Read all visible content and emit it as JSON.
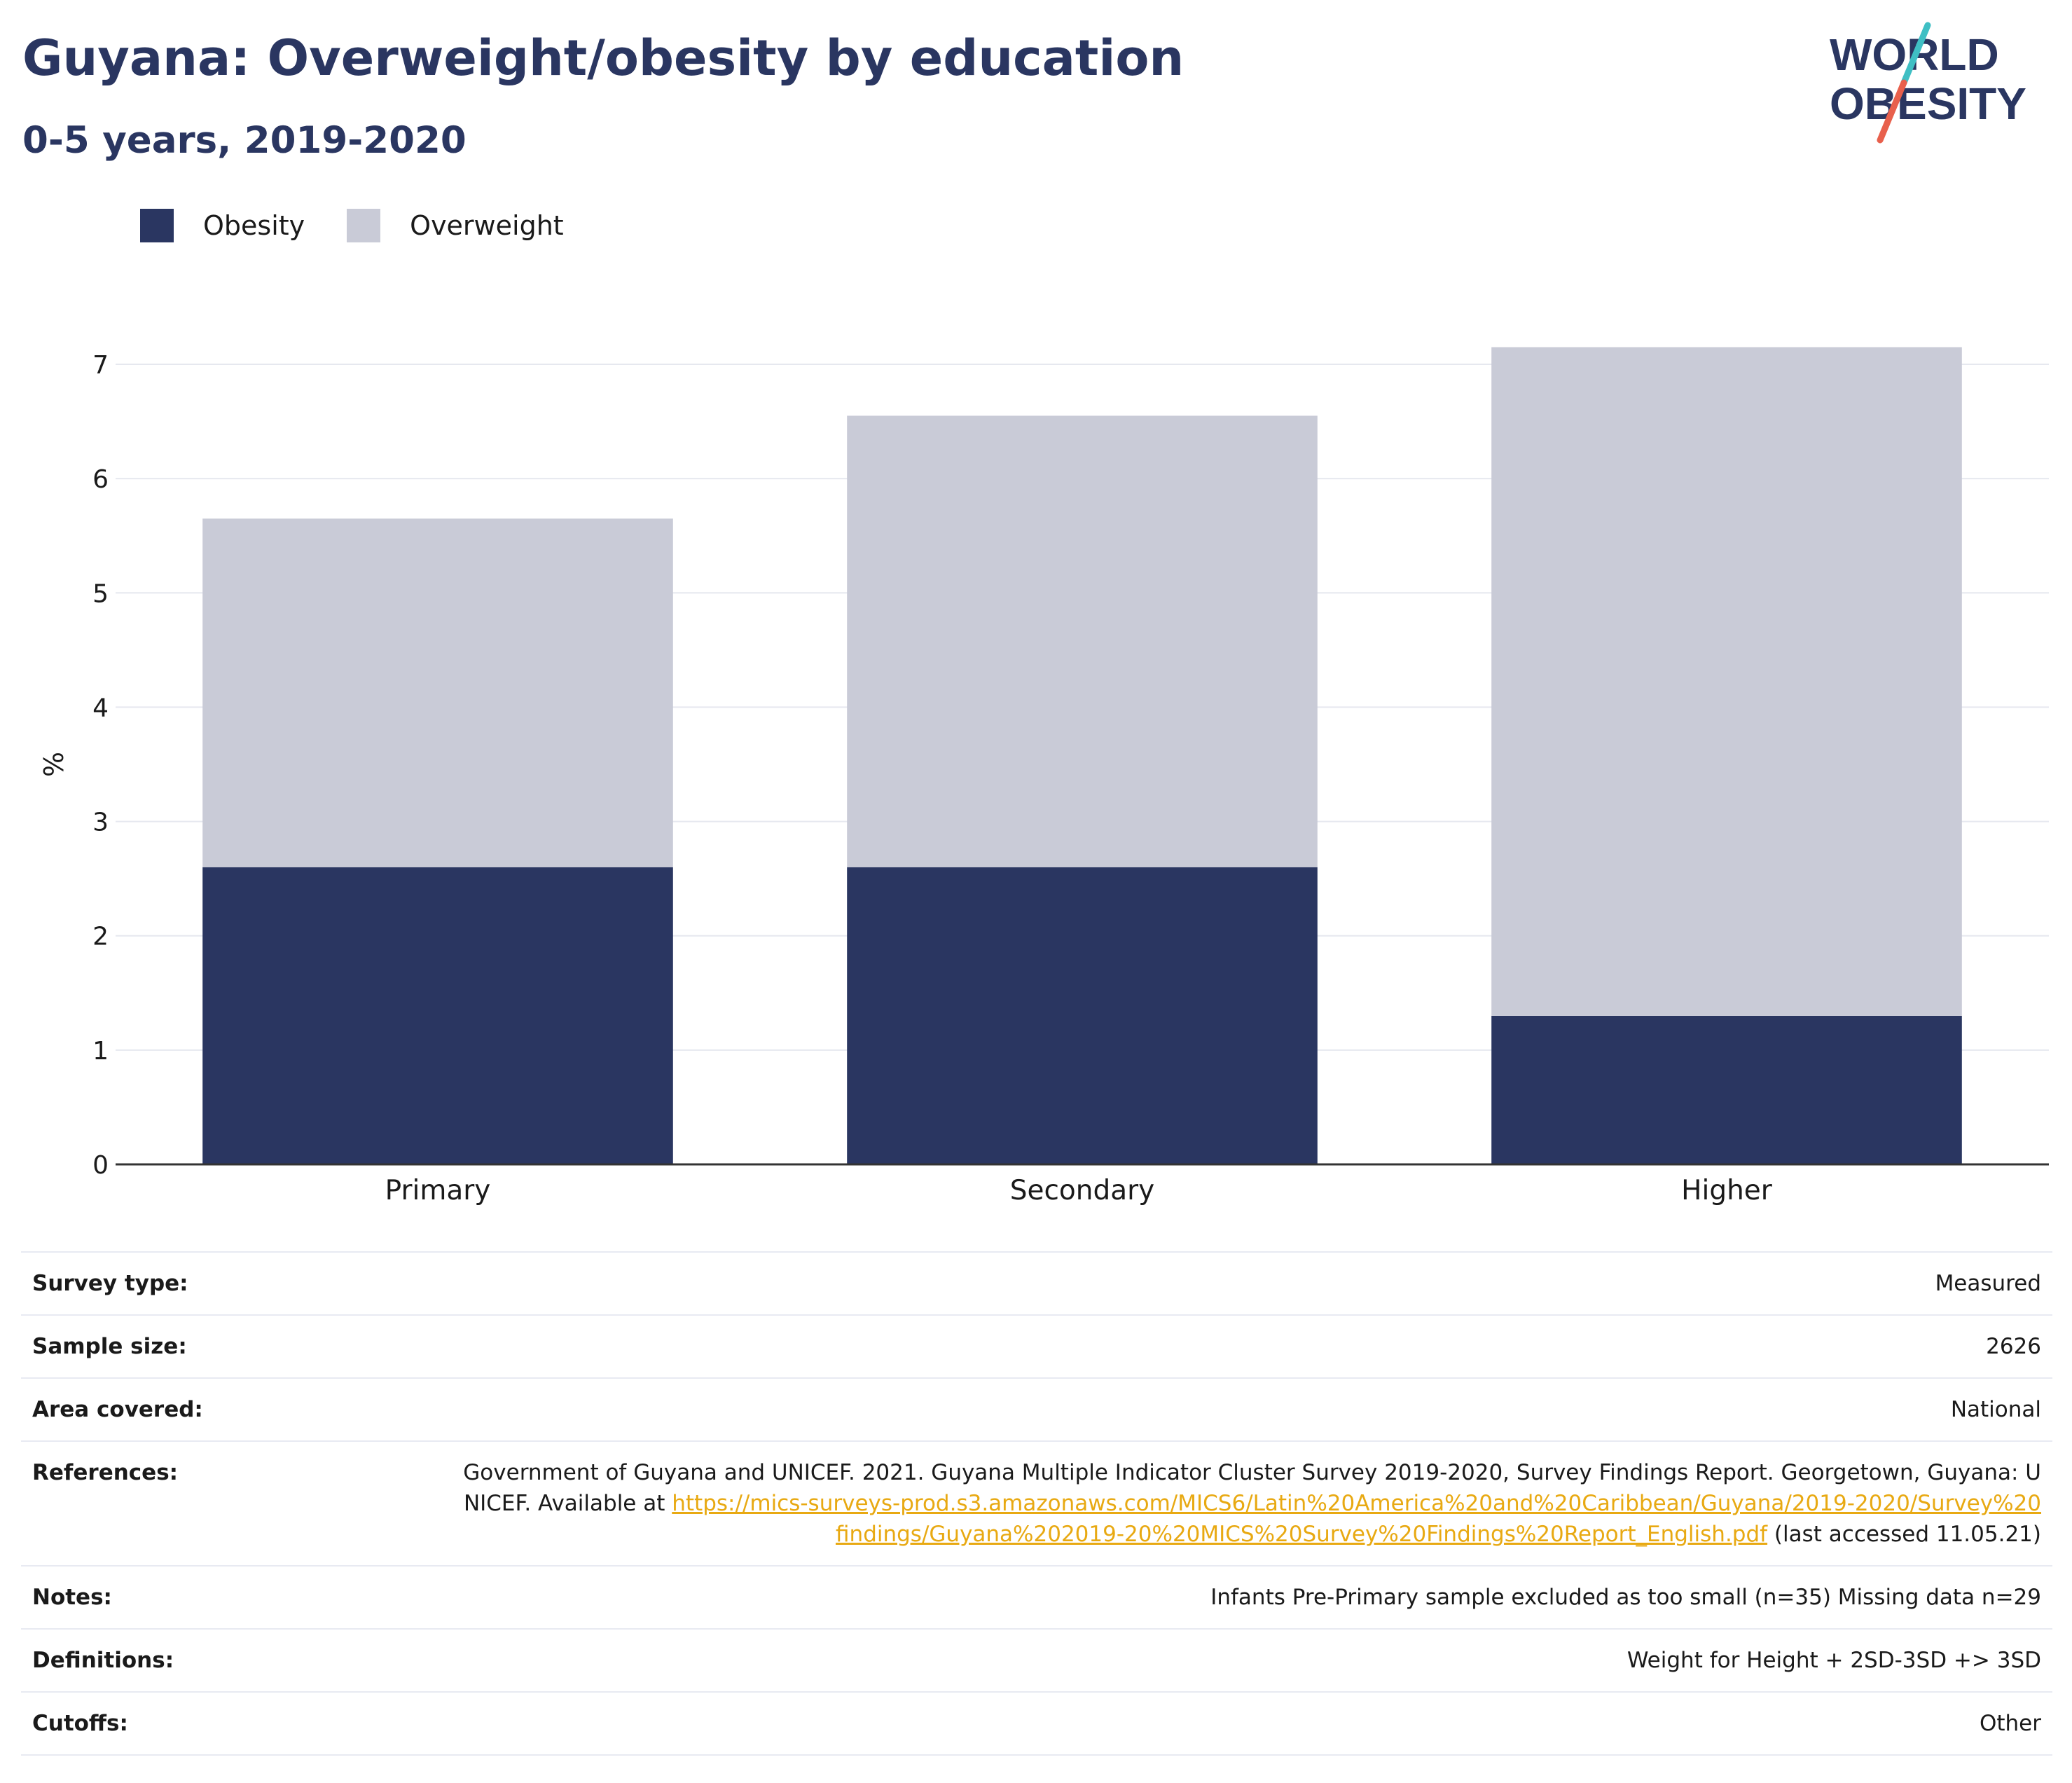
{
  "header": {
    "title": "Guyana: Overweight/obesity by education",
    "subtitle": "0-5 years, 2019-2020"
  },
  "logo": {
    "line1": "WORLD",
    "line2": "OBESITY",
    "accent_colors": [
      "#3fbfc4",
      "#e8604c"
    ]
  },
  "colors": {
    "obesity": "#2a3661",
    "overweight": "#c9cbd7",
    "title": "#2a3661",
    "link": "#e8a912"
  },
  "chart_data": {
    "type": "bar",
    "stacked": true,
    "categories": [
      "Primary",
      "Secondary",
      "Higher"
    ],
    "series": [
      {
        "name": "Obesity",
        "values": [
          2.6,
          2.6,
          1.3
        ]
      },
      {
        "name": "Overweight",
        "values": [
          3.05,
          3.95,
          5.85
        ]
      }
    ],
    "ylabel": "%",
    "ylim": [
      0,
      7
    ],
    "yticks": [
      0,
      1,
      2,
      3,
      4,
      5,
      6,
      7
    ],
    "grid": true,
    "legend_position": "top-left"
  },
  "meta": {
    "survey_type": {
      "label": "Survey type:",
      "value": "Measured"
    },
    "sample_size": {
      "label": "Sample size:",
      "value": "2626"
    },
    "area_covered": {
      "label": "Area covered:",
      "value": "National"
    },
    "references": {
      "label": "References:",
      "text_before": "Government of Guyana and UNICEF. 2021. Guyana Multiple Indicator Cluster Survey 2019-2020, Survey Findings Report. Georgetown, Guyana: UNICEF. Available at ",
      "link": "https://mics-surveys-prod.s3.amazonaws.com/MICS6/Latin%20America%20and%20Caribbean/Guyana/2019-2020/Survey%20findings/Guyana%202019-20%20MICS%20Survey%20Findings%20Report_English.pdf",
      "text_after": " (last accessed 11.05.21)"
    },
    "notes": {
      "label": "Notes:",
      "value": "Infants Pre-Primary sample excluded as too small (n=35) Missing data n=29"
    },
    "definitions": {
      "label": "Definitions:",
      "value": "Weight for Height + 2SD-3SD +> 3SD"
    },
    "cutoffs": {
      "label": "Cutoffs:",
      "value": "Other"
    }
  }
}
